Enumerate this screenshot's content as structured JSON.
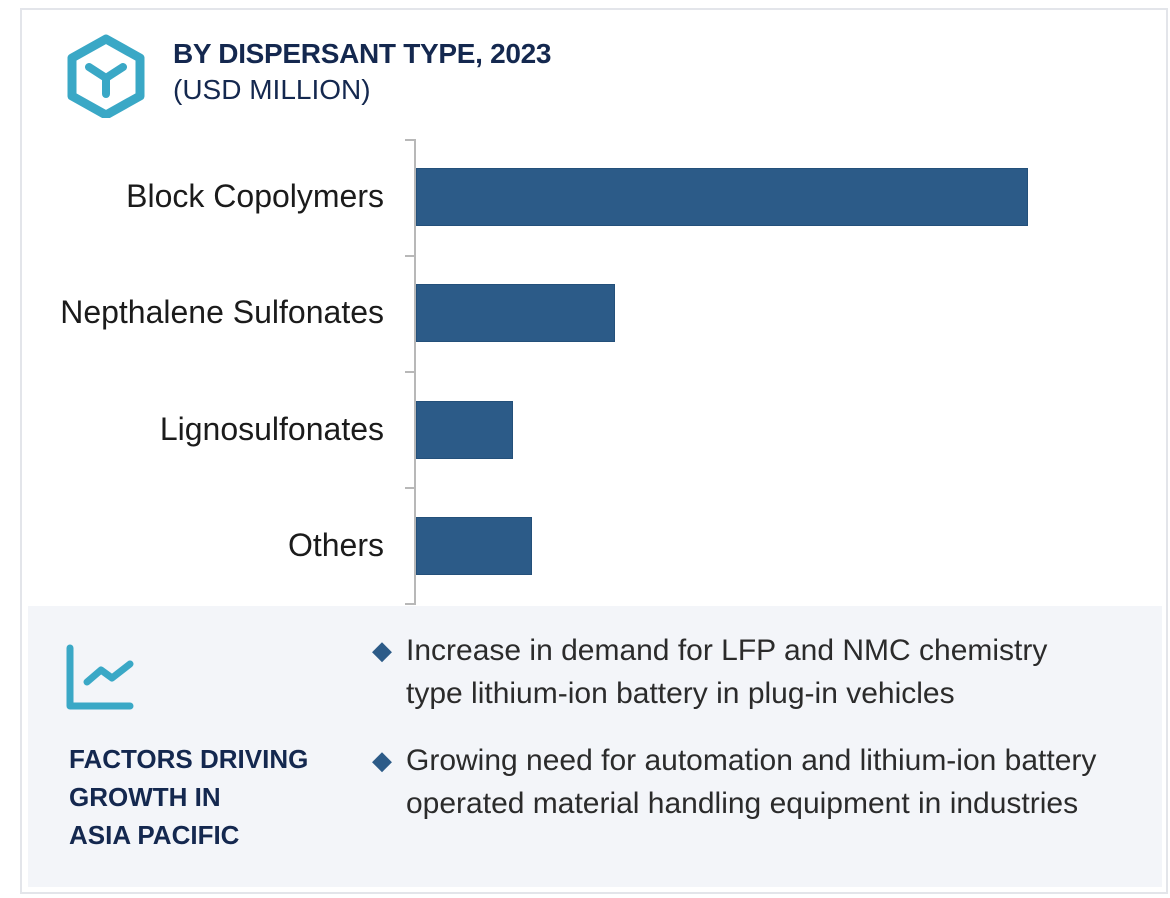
{
  "header": {
    "title": "BY DISPERSANT TYPE, 2023",
    "subtitle": "(USD MILLION)",
    "icon": "hexagon-y-icon"
  },
  "chart_data": {
    "type": "bar",
    "orientation": "horizontal",
    "title": "BY DISPERSANT TYPE, 2023",
    "subtitle": "(USD MILLION)",
    "categories": [
      "Block Copolymers",
      "Nepthalene Sulfonates",
      "Lignosulfonates",
      "Others"
    ],
    "values": [
      612,
      199,
      97,
      116
    ],
    "value_note": "Relative bar lengths in pixels; no value axis or data labels shown",
    "xlabel": "",
    "ylabel": "",
    "grid": false,
    "legend": null,
    "bar_color": "#2c5b88"
  },
  "factors": {
    "icon": "trend-chart-icon",
    "title_lines": [
      "FACTORS DRIVING",
      "GROWTH IN",
      "ASIA PACIFIC"
    ],
    "bullets": [
      "Increase in demand for LFP and NMC chemistry type lithium-ion battery in plug-in vehicles",
      "Growing need for automation and lithium-ion battery operated material handling equipment in industries"
    ],
    "bullet_glyph": "◆"
  },
  "colors": {
    "accent": "#3aa8c6",
    "title": "#14284f",
    "bar": "#2c5b88",
    "panel_bg": "#f3f5f9"
  }
}
